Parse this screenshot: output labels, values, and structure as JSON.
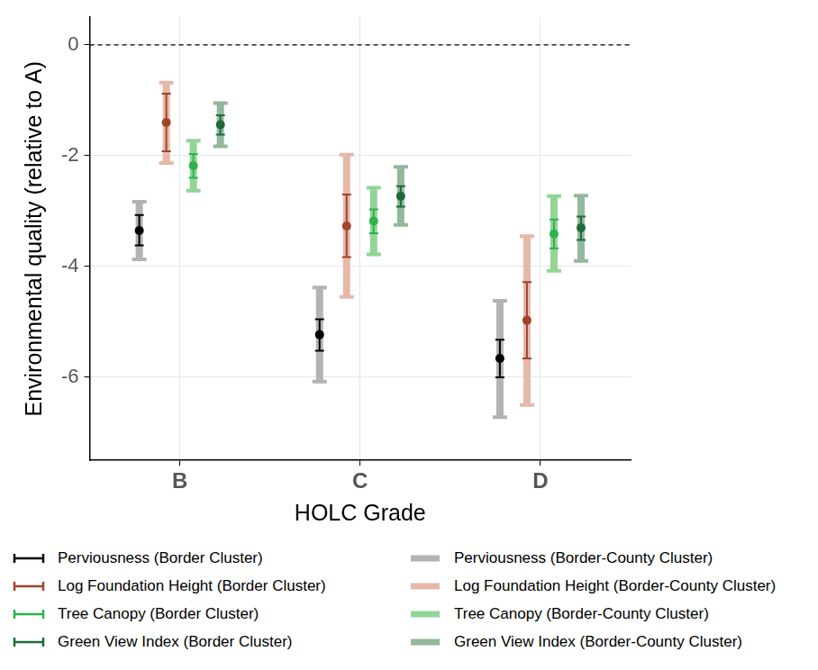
{
  "chart_data": {
    "type": "errorbar",
    "x_label": "HOLC Grade",
    "y_label": "Environmental quality (relative to A)",
    "categories": [
      "B",
      "C",
      "D"
    ],
    "ylim": [
      -7.5,
      0.5
    ],
    "yticks": [
      -6,
      -4,
      -2,
      0
    ],
    "grid": true,
    "reference_line": 0,
    "series": [
      {
        "name": "Perviousness (Border Cluster)",
        "color": "#000000",
        "marker": "circle",
        "line_style": "thin",
        "values": [
          -3.35,
          -5.23,
          -5.66
        ],
        "ci_low": [
          -3.62,
          -5.52,
          -6.0
        ],
        "ci_high": [
          -3.07,
          -4.95,
          -5.32
        ]
      },
      {
        "name": "Log Foundation Height (Border Cluster)",
        "color": "#a0442c",
        "marker": "circle",
        "line_style": "thin",
        "values": [
          -1.4,
          -3.27,
          -4.97
        ],
        "ci_low": [
          -1.92,
          -3.83,
          -5.66
        ],
        "ci_high": [
          -0.88,
          -2.7,
          -4.28
        ]
      },
      {
        "name": "Tree Canopy (Border Cluster)",
        "color": "#2db34a",
        "marker": "circle",
        "line_style": "thin",
        "values": [
          -2.18,
          -3.18,
          -3.41
        ],
        "ci_low": [
          -2.4,
          -3.4,
          -3.67
        ],
        "ci_high": [
          -1.97,
          -2.97,
          -3.15
        ]
      },
      {
        "name": "Green View Index (Border Cluster)",
        "color": "#1e6b3a",
        "marker": "circle",
        "line_style": "thin",
        "values": [
          -1.44,
          -2.73,
          -3.3
        ],
        "ci_low": [
          -1.62,
          -2.92,
          -3.52
        ],
        "ci_high": [
          -1.27,
          -2.55,
          -3.1
        ]
      },
      {
        "name": "Perviousness (Border-County Cluster)",
        "color": "#b3b3b3",
        "marker": "none",
        "line_style": "bold",
        "values": [
          -3.35,
          -5.23,
          -5.66
        ],
        "ci_low": [
          -3.87,
          -6.08,
          -6.72
        ],
        "ci_high": [
          -2.83,
          -4.38,
          -4.62
        ]
      },
      {
        "name": "Log Foundation Height (Border-County Cluster)",
        "color": "#e6b8a9",
        "marker": "none",
        "line_style": "bold",
        "values": [
          -1.4,
          -3.27,
          -4.97
        ],
        "ci_low": [
          -2.13,
          -4.55,
          -6.5
        ],
        "ci_high": [
          -0.68,
          -1.98,
          -3.45
        ]
      },
      {
        "name": "Tree Canopy (Border-County Cluster)",
        "color": "#93d497",
        "marker": "none",
        "line_style": "bold",
        "values": [
          -2.18,
          -3.18,
          -3.41
        ],
        "ci_low": [
          -2.63,
          -3.78,
          -4.08
        ],
        "ci_high": [
          -1.73,
          -2.58,
          -2.73
        ]
      },
      {
        "name": "Green View Index (Border-County Cluster)",
        "color": "#93b89c",
        "marker": "none",
        "line_style": "bold",
        "values": [
          -1.44,
          -2.73,
          -3.3
        ],
        "ci_low": [
          -1.83,
          -3.25,
          -3.9
        ],
        "ci_high": [
          -1.05,
          -2.2,
          -2.72
        ]
      }
    ]
  }
}
